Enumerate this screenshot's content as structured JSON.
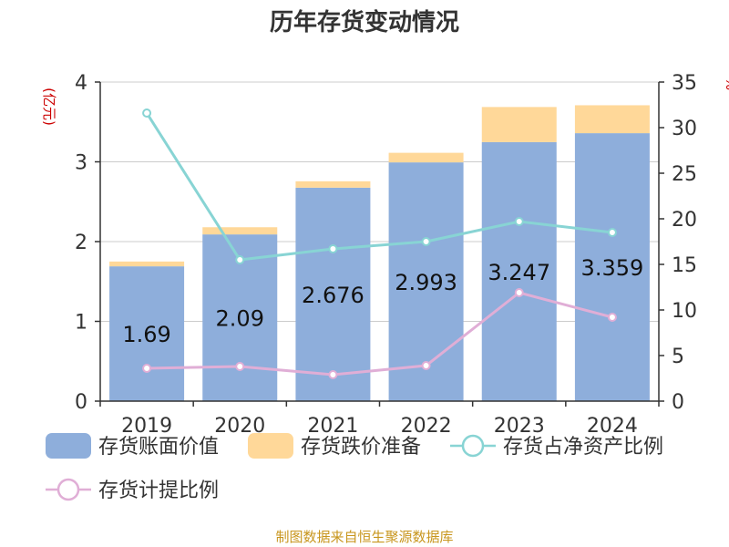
{
  "chart_data": {
    "type": "bar",
    "title": "历年存货变动情况",
    "categories": [
      "2019",
      "2020",
      "2021",
      "2022",
      "2023",
      "2024"
    ],
    "y_left": {
      "unit_label": "(亿元)",
      "ylim": [
        0,
        4
      ],
      "ticks": [
        0,
        1,
        2,
        3,
        4
      ]
    },
    "y_right": {
      "unit_label": "%",
      "ylim": [
        0,
        35
      ],
      "ticks": [
        0,
        5,
        10,
        15,
        20,
        25,
        30,
        35
      ]
    },
    "series": [
      {
        "name": "存货账面价值",
        "kind": "bar",
        "stack": "inv",
        "axis": "left",
        "color": "#8eaedb",
        "values": [
          1.69,
          2.09,
          2.676,
          2.993,
          3.247,
          3.359
        ],
        "labels": [
          "1.69",
          "2.09",
          "2.676",
          "2.993",
          "3.247",
          "3.359"
        ]
      },
      {
        "name": "存货跌价准备",
        "kind": "bar",
        "stack": "inv",
        "axis": "left",
        "color": "#ffd899",
        "values": [
          0.06,
          0.09,
          0.08,
          0.12,
          0.44,
          0.35
        ]
      },
      {
        "name": "存货占净资产比例",
        "kind": "line",
        "axis": "right",
        "color": "#88d4d4",
        "values": [
          31.6,
          15.5,
          16.7,
          17.5,
          19.7,
          18.5
        ]
      },
      {
        "name": "存货计提比例",
        "kind": "line",
        "axis": "right",
        "color": "#e0aed6",
        "values": [
          3.6,
          3.8,
          2.9,
          3.9,
          11.9,
          9.2
        ]
      }
    ],
    "grid": true,
    "legend_position": "bottom"
  },
  "source": "制图数据来自恒生聚源数据库"
}
